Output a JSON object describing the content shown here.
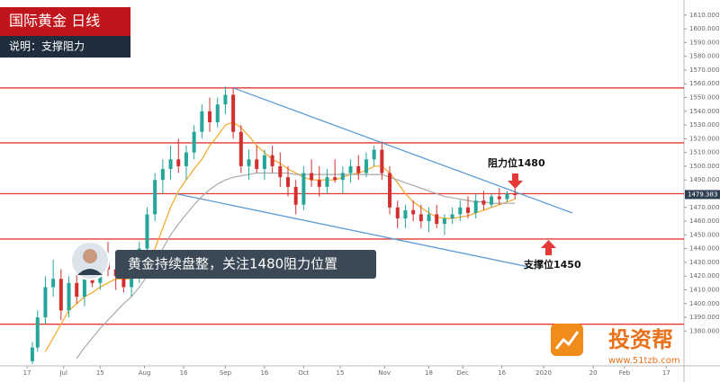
{
  "chart_data": {
    "type": "candlestick",
    "title": "国际黄金 日线",
    "subtitle": "说明：支撑阻力",
    "x": [
      18,
      20,
      23,
      26,
      29,
      32,
      35,
      38,
      41,
      44,
      47,
      50,
      53,
      56,
      59,
      62,
      65,
      68,
      71,
      74,
      77,
      80,
      83,
      86,
      89,
      92,
      95,
      98,
      101,
      104,
      107,
      110,
      113,
      116,
      119,
      122,
      125,
      128,
      131,
      134,
      137,
      140,
      143,
      146,
      149,
      152,
      155,
      158,
      161,
      164,
      167,
      170,
      173,
      176,
      179,
      182,
      185,
      188,
      191,
      194,
      197,
      200,
      203
    ],
    "open": [
      1358,
      1368,
      1390,
      1412,
      1418,
      1395,
      1415,
      1405,
      1420,
      1415,
      1432,
      1425,
      1420,
      1412,
      1420,
      1440,
      1465,
      1490,
      1498,
      1505,
      1500,
      1510,
      1525,
      1540,
      1532,
      1545,
      1552,
      1525,
      1500,
      1505,
      1498,
      1508,
      1500,
      1492,
      1485,
      1472,
      1495,
      1490,
      1485,
      1492,
      1490,
      1495,
      1500,
      1495,
      1505,
      1512,
      1495,
      1470,
      1462,
      1468,
      1465,
      1460,
      1465,
      1458,
      1462,
      1465,
      1470,
      1466,
      1475,
      1472,
      1478,
      1476,
      1480
    ],
    "high": [
      1372,
      1395,
      1420,
      1432,
      1425,
      1420,
      1430,
      1425,
      1440,
      1438,
      1445,
      1432,
      1435,
      1425,
      1445,
      1470,
      1495,
      1505,
      1515,
      1520,
      1515,
      1530,
      1545,
      1550,
      1550,
      1558,
      1557,
      1530,
      1512,
      1515,
      1512,
      1515,
      1510,
      1500,
      1490,
      1500,
      1505,
      1500,
      1498,
      1505,
      1500,
      1505,
      1508,
      1510,
      1515,
      1518,
      1500,
      1475,
      1472,
      1475,
      1472,
      1470,
      1472,
      1465,
      1470,
      1475,
      1478,
      1480,
      1482,
      1480,
      1484,
      1482,
      1485
    ],
    "low": [
      1356,
      1365,
      1385,
      1405,
      1388,
      1390,
      1400,
      1398,
      1412,
      1410,
      1420,
      1410,
      1408,
      1405,
      1415,
      1435,
      1460,
      1480,
      1490,
      1495,
      1490,
      1505,
      1520,
      1525,
      1528,
      1538,
      1520,
      1495,
      1490,
      1495,
      1490,
      1495,
      1485,
      1478,
      1465,
      1468,
      1485,
      1478,
      1480,
      1488,
      1480,
      1488,
      1490,
      1492,
      1500,
      1490,
      1465,
      1455,
      1455,
      1460,
      1455,
      1452,
      1455,
      1450,
      1458,
      1460,
      1462,
      1462,
      1468,
      1470,
      1472,
      1474,
      1476
    ],
    "close": [
      1368,
      1390,
      1412,
      1418,
      1395,
      1415,
      1405,
      1420,
      1415,
      1432,
      1425,
      1420,
      1412,
      1420,
      1440,
      1465,
      1490,
      1498,
      1505,
      1500,
      1510,
      1525,
      1540,
      1532,
      1545,
      1552,
      1525,
      1500,
      1505,
      1498,
      1508,
      1500,
      1492,
      1485,
      1472,
      1495,
      1490,
      1485,
      1492,
      1490,
      1495,
      1500,
      1495,
      1505,
      1512,
      1495,
      1470,
      1462,
      1468,
      1465,
      1460,
      1465,
      1458,
      1462,
      1465,
      1470,
      1466,
      1475,
      1472,
      1478,
      1476,
      1480,
      1479
    ],
    "up_color": "#26a69a",
    "down_color": "#d32f2f",
    "moving_averages": [
      {
        "color": "#f5a623",
        "values": [
          null,
          null,
          1365,
          1375,
          1385,
          1395,
          1400,
          1405,
          1408,
          1412,
          1415,
          1418,
          1418,
          1418,
          1420,
          1428,
          1440,
          1455,
          1470,
          1482,
          1490,
          1498,
          1505,
          1515,
          1522,
          1530,
          1532,
          1528,
          1522,
          1515,
          1510,
          1505,
          1502,
          1498,
          1495,
          1492,
          1490,
          1490,
          1490,
          1490,
          1492,
          1494,
          1495,
          1497,
          1500,
          1500,
          1495,
          1488,
          1480,
          1474,
          1470,
          1466,
          1463,
          1462,
          1462,
          1463,
          1464,
          1466,
          1468,
          1470,
          1472,
          1474,
          1476
        ]
      },
      {
        "color": "#a9a9a9",
        "values": [
          null,
          null,
          null,
          null,
          null,
          null,
          1360,
          1368,
          1375,
          1382,
          1388,
          1394,
          1400,
          1405,
          1412,
          1420,
          1430,
          1440,
          1450,
          1458,
          1465,
          1472,
          1478,
          1483,
          1487,
          1490,
          1492,
          1493,
          1494,
          1495,
          1495,
          1495,
          1495,
          1495,
          1494,
          1494,
          1494,
          1494,
          1494,
          1494,
          1494,
          1494,
          1494,
          1494,
          1494,
          1494,
          1492,
          1490,
          1488,
          1486,
          1484,
          1482,
          1480,
          1478,
          1477,
          1476,
          1475,
          1474,
          1474,
          1473,
          1473,
          1473,
          1473
        ]
      }
    ],
    "levels": {
      "color": "#e53935",
      "values": [
        1557,
        1517,
        1480,
        1447,
        1385
      ]
    },
    "trendlines": {
      "color": "#5b9bd5",
      "lines": [
        {
          "x": [
            95,
            225
          ],
          "values": [
            1557,
            1466
          ]
        },
        {
          "x": [
            73,
            210
          ],
          "values": [
            1480,
            1426
          ]
        }
      ]
    },
    "last_price": 1479.383,
    "annotations": {
      "comment": "黄金持续盘整，关注1480阻力位置",
      "resistance": "阻力位1480",
      "support": "支撑位1450"
    },
    "logo": {
      "name": "投资帮",
      "url": "www.51tzb.com"
    },
    "xlim": [
      5.6,
      267.8
    ],
    "ylim": [
      1356,
      1621
    ],
    "xticks": [
      {
        "value": 16,
        "label": "17"
      },
      {
        "value": 30,
        "label": "Jul"
      },
      {
        "value": 44,
        "label": "15"
      },
      {
        "value": 61,
        "label": "Aug"
      },
      {
        "value": 76,
        "label": "16"
      },
      {
        "value": 92,
        "label": "Sep"
      },
      {
        "value": 107,
        "label": "16"
      },
      {
        "value": 122,
        "label": "Oct"
      },
      {
        "value": 136,
        "label": "15"
      },
      {
        "value": 153,
        "label": "Nov"
      },
      {
        "value": 170,
        "label": "18"
      },
      {
        "value": 183,
        "label": "Dec"
      },
      {
        "value": 198,
        "label": "16"
      },
      {
        "value": 214,
        "label": "2020"
      },
      {
        "value": 233,
        "label": "20"
      },
      {
        "value": 245,
        "label": "Feb"
      },
      {
        "value": 261,
        "label": "17"
      }
    ],
    "yticks": [
      {
        "value": 1380,
        "label": "1380.000"
      },
      {
        "value": 1390,
        "label": "1390.000"
      },
      {
        "value": 1400,
        "label": "1400.000"
      },
      {
        "value": 1410,
        "label": "1410.000"
      },
      {
        "value": 1420,
        "label": "1420.000"
      },
      {
        "value": 1430,
        "label": "1430.000"
      },
      {
        "value": 1440,
        "label": "1440.000"
      },
      {
        "value": 1450,
        "label": "1450.000"
      },
      {
        "value": 1460,
        "label": "1460.000"
      },
      {
        "value": 1470,
        "label": "1470.000"
      },
      {
        "value": 1490,
        "label": "1490.000"
      },
      {
        "value": 1500,
        "label": "1500.000"
      },
      {
        "value": 1510,
        "label": "1510.000"
      },
      {
        "value": 1520,
        "label": "1520.000"
      },
      {
        "value": 1530,
        "label": "1530.000"
      },
      {
        "value": 1540,
        "label": "1540.000"
      },
      {
        "value": 1550,
        "label": "1550.000"
      },
      {
        "value": 1560,
        "label": "1560.000"
      },
      {
        "value": 1570,
        "label": "1570.000"
      },
      {
        "value": 1580,
        "label": "1580.000"
      },
      {
        "value": 1590,
        "label": "1590.000"
      },
      {
        "value": 1600,
        "label": "1600.000"
      },
      {
        "value": 1610,
        "label": "1610.000"
      }
    ]
  }
}
